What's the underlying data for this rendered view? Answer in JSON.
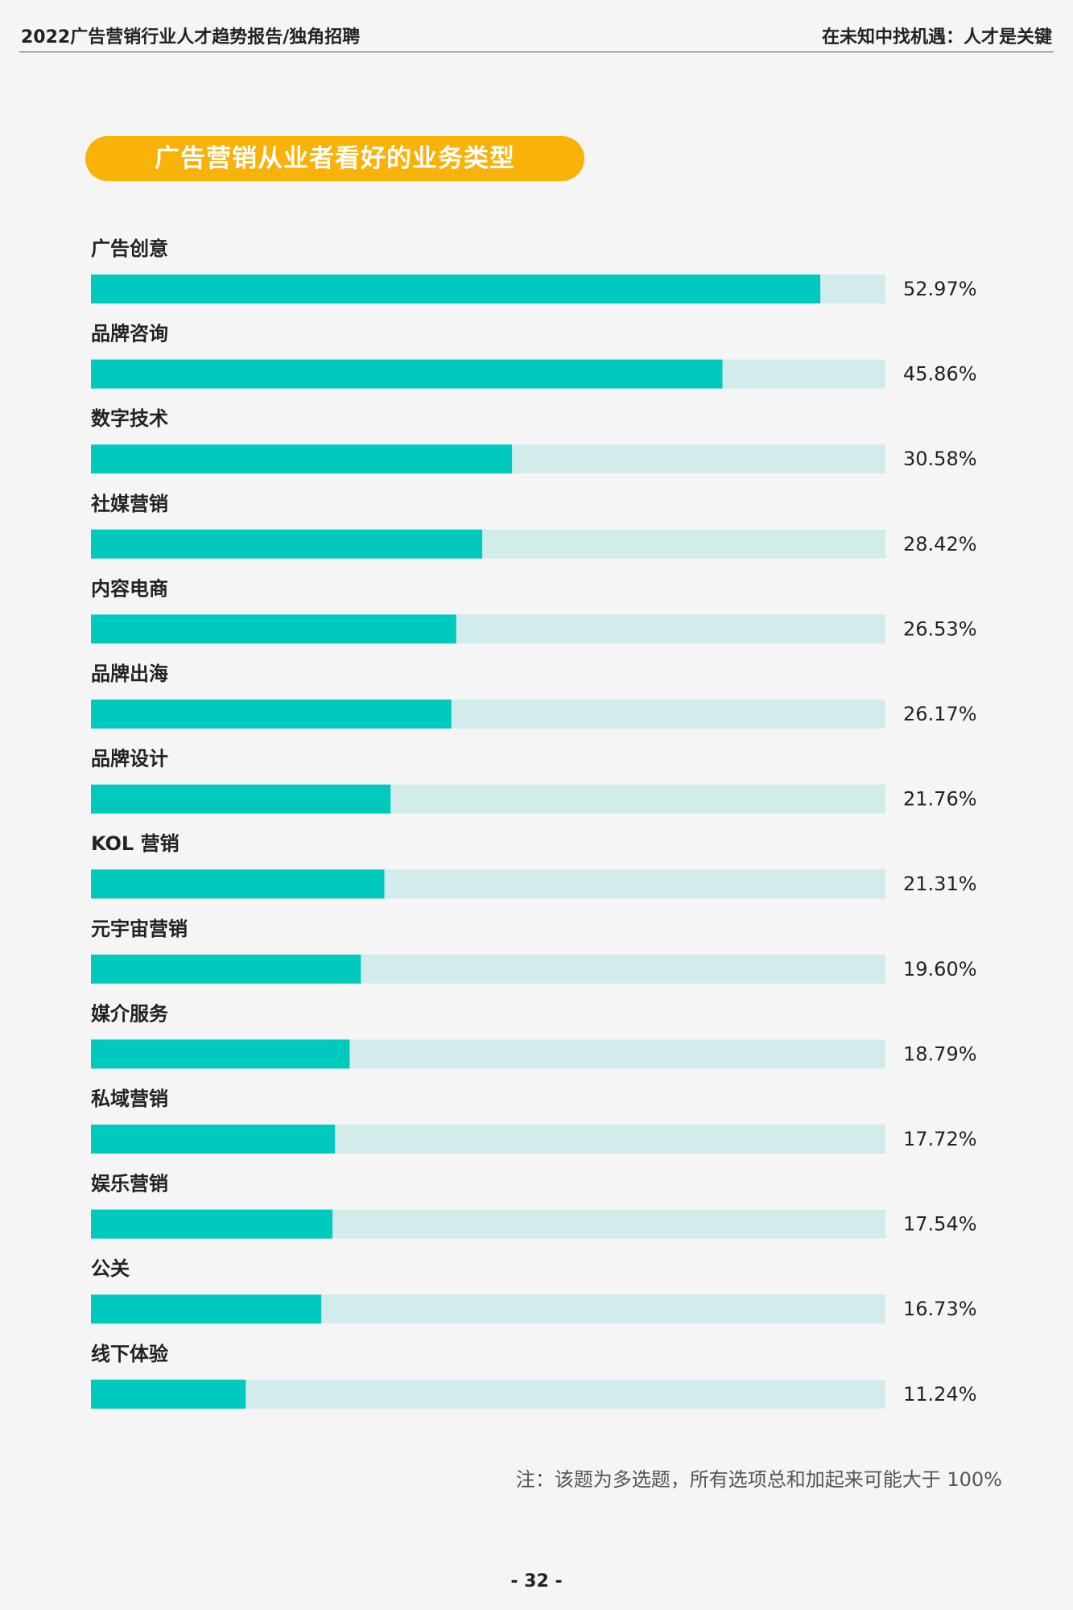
{
  "header": {
    "left_title": "2022广告营销行业人才趋势报告/独角招聘",
    "right_title": "在未知中找机遇：人才是关键"
  },
  "chart_data": {
    "type": "bar",
    "orientation": "horizontal",
    "title": "广告营销从业者看好的业务类型",
    "categories": [
      "广告创意",
      "品牌咨询",
      "数字技术",
      "社媒营销",
      "内容电商",
      "品牌出海",
      "品牌设计",
      "KOL 营销",
      "元宇宙营销",
      "媒介服务",
      "私域营销",
      "娱乐营销",
      "公关",
      "线下体验"
    ],
    "values": [
      52.97,
      45.86,
      30.58,
      28.42,
      26.53,
      26.17,
      21.76,
      21.31,
      19.6,
      18.79,
      17.72,
      17.54,
      16.73,
      11.24
    ],
    "value_labels": [
      "52.97%",
      "45.86%",
      "30.58%",
      "28.42%",
      "26.53%",
      "26.17%",
      "21.76%",
      "21.31%",
      "19.60%",
      "18.79%",
      "17.72%",
      "17.54%",
      "16.73%",
      "11.24%"
    ],
    "unit": "%",
    "xlim": [
      0,
      57.7
    ],
    "colors": {
      "bar": "#00c9be",
      "track": "#d2eceb"
    }
  },
  "note": "注：该题为多选题，所有选项总和加起来可能大于 100%",
  "page_number": "- 32 -"
}
